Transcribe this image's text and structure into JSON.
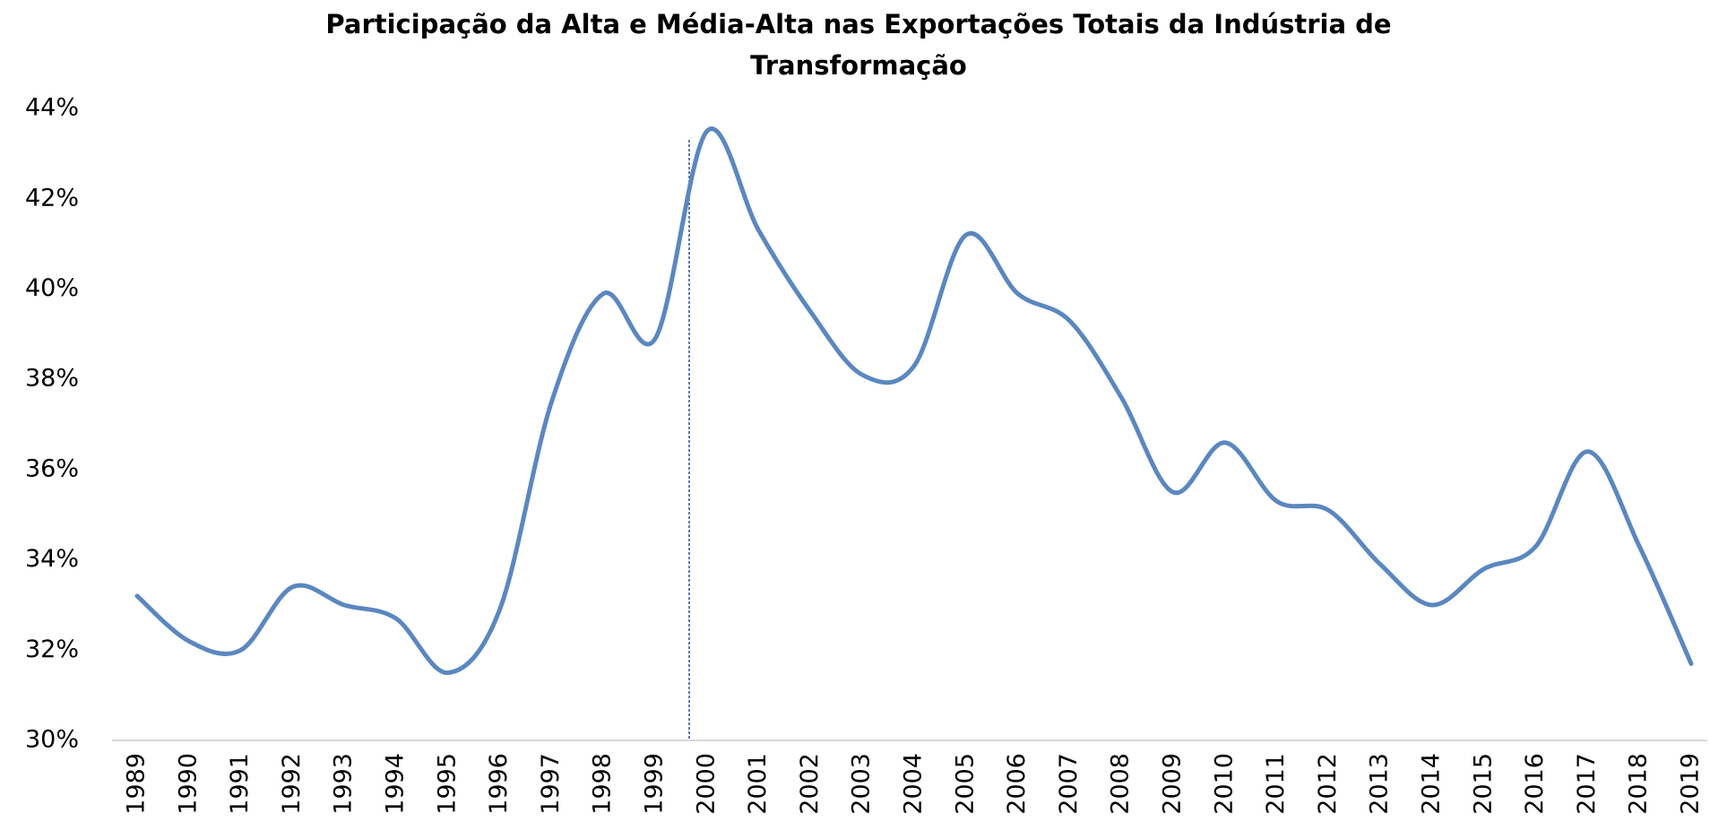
{
  "chart_data": {
    "type": "line",
    "title": "Participação da Alta e Média-Alta nas Exportações Totais da Indústria de Transformação",
    "categories": [
      "1989",
      "1990",
      "1991",
      "1992",
      "1993",
      "1994",
      "1995",
      "1996",
      "1997",
      "1998",
      "1999",
      "2000",
      "2001",
      "2002",
      "2003",
      "2004",
      "2005",
      "2006",
      "2007",
      "2008",
      "2009",
      "2010",
      "2011",
      "2012",
      "2013",
      "2014",
      "2015",
      "2016",
      "2017",
      "2018",
      "2019"
    ],
    "series": [
      {
        "name": "Participação",
        "color": "#5b87c0",
        "values": [
          33.2,
          32.2,
          32.0,
          33.4,
          33.0,
          32.7,
          31.5,
          32.9,
          37.5,
          39.9,
          38.9,
          43.5,
          41.3,
          39.5,
          38.1,
          38.3,
          41.2,
          39.9,
          39.3,
          37.6,
          35.5,
          36.6,
          35.3,
          35.1,
          33.9,
          33.0,
          33.8,
          34.3,
          36.4,
          34.3,
          31.7
        ]
      }
    ],
    "ylim": [
      30,
      44.5
    ],
    "yticks": [
      {
        "value": 30,
        "label": "30%"
      },
      {
        "value": 32,
        "label": "32%"
      },
      {
        "value": 34,
        "label": "34%"
      },
      {
        "value": 36,
        "label": "36%"
      },
      {
        "value": 38,
        "label": "38%"
      },
      {
        "value": 40,
        "label": "40%"
      },
      {
        "value": 42,
        "label": "42%"
      },
      {
        "value": 44,
        "label": "44%"
      }
    ],
    "grid": false
  }
}
